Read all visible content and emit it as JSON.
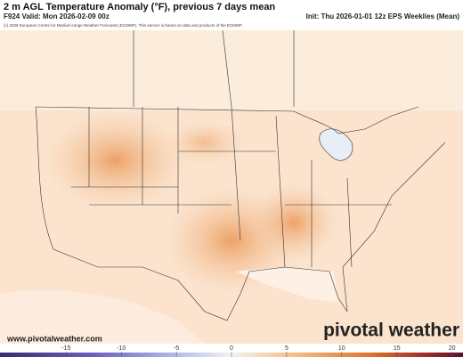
{
  "header": {
    "title": "2 m AGL Temperature Anomaly (°F), previous 7 days mean",
    "valid": "F924 Valid: Mon 2026-02-09 00z",
    "init": "Init: Thu 2026-01-01 12z EPS Weeklies (Mean)",
    "credit": "(c) 2026 European Centre for Medium-range Weather Forecasts (ECMWF). This service is based on data and products of the ECMWF."
  },
  "footer": {
    "url": "www.pivotalweather.com",
    "brand": "pivotal weather"
  },
  "colorbar": {
    "range": [
      -21,
      21
    ],
    "ticks": [
      -15,
      -10,
      -5,
      0,
      5,
      10,
      15,
      20
    ]
  }
}
